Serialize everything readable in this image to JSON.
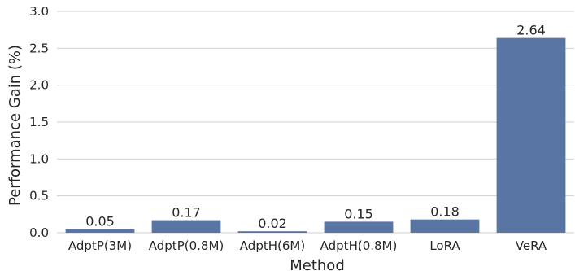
{
  "chart_data": {
    "type": "bar",
    "title": "",
    "xlabel": "Method",
    "ylabel": "Performance Gain (%)",
    "categories": [
      "AdptP(3M)",
      "AdptP(0.8M)",
      "AdptH(6M)",
      "AdptH(0.8M)",
      "LoRA",
      "VeRA"
    ],
    "values": [
      0.05,
      0.17,
      0.02,
      0.15,
      0.18,
      2.64
    ],
    "data_labels": [
      "0.05",
      "0.17",
      "0.02",
      "0.15",
      "0.18",
      "2.64"
    ],
    "ylim": [
      0,
      3.0
    ],
    "yticks": [
      0.0,
      0.5,
      1.0,
      1.5,
      2.0,
      2.5,
      3.0
    ],
    "ytick_labels": [
      "0.0",
      "0.5",
      "1.0",
      "1.5",
      "2.0",
      "2.5",
      "3.0"
    ],
    "grid": true,
    "bar_color": "#5975a4",
    "grid_color": "#cfcfcf"
  }
}
